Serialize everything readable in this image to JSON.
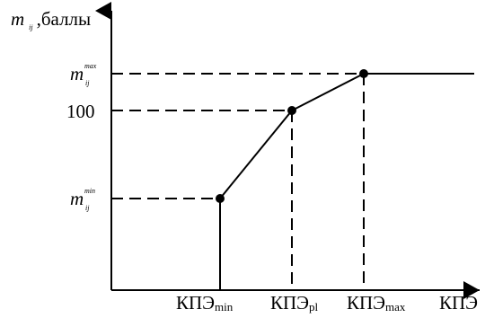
{
  "chart_data": {
    "type": "line",
    "y_axis": {
      "symbol": "m",
      "subscript": "ij",
      "unit": ",баллы"
    },
    "x_axis": {
      "label": "КПЭ"
    },
    "x_ticks": [
      {
        "main": "КПЭ",
        "sub": "min",
        "key": "min"
      },
      {
        "main": "КПЭ",
        "sub": "pl",
        "key": "pl"
      },
      {
        "main": "КПЭ",
        "sub": "max",
        "key": "max"
      }
    ],
    "y_ticks": [
      {
        "key": "min",
        "type": "symbol",
        "symbol": "m",
        "sup": "min",
        "sub": "ij"
      },
      {
        "key": "100",
        "type": "number",
        "text": "100"
      },
      {
        "key": "max",
        "type": "symbol",
        "symbol": "m",
        "sup": "max",
        "sub": "ij"
      }
    ],
    "points": [
      {
        "x": "min",
        "y": "min"
      },
      {
        "x": "pl",
        "y": "100"
      },
      {
        "x": "max",
        "y": "max"
      }
    ],
    "segments": [
      {
        "style": "solid",
        "from": {
          "x": "min",
          "y": 0
        },
        "to": {
          "x": "min",
          "y": "min"
        }
      },
      {
        "style": "solid",
        "from": {
          "x": "min",
          "y": "min"
        },
        "to": {
          "x": "pl",
          "y": "100"
        }
      },
      {
        "style": "solid",
        "from": {
          "x": "pl",
          "y": "100"
        },
        "to": {
          "x": "max",
          "y": "max"
        }
      },
      {
        "style": "solid",
        "from": {
          "x": "max",
          "y": "max"
        },
        "to": {
          "x": "end",
          "y": "max"
        }
      }
    ],
    "grid": false
  }
}
